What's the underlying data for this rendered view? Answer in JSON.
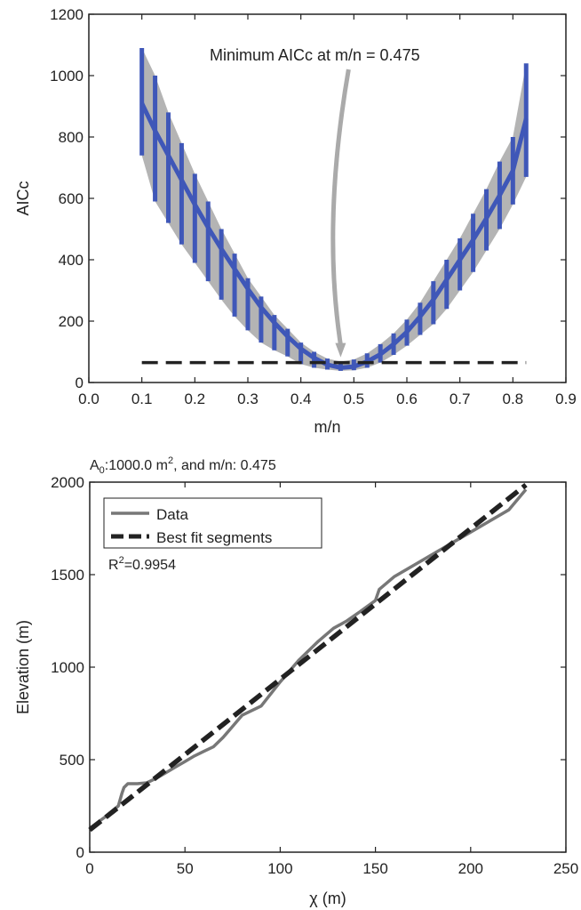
{
  "chart_data": [
    {
      "type": "line",
      "xlabel": "m/n",
      "ylabel": "AICc",
      "xlim": [
        0,
        0.9
      ],
      "ylim": [
        0,
        1200
      ],
      "xticks": [
        "0.0",
        "0.1",
        "0.2",
        "0.3",
        "0.4",
        "0.5",
        "0.6",
        "0.7",
        "0.8",
        "0.9"
      ],
      "yticks": [
        "0",
        "200",
        "400",
        "600",
        "800",
        "1000",
        "1200"
      ],
      "annotation": "Minimum AICc at m/n = 0.475",
      "min_mn": 0.475,
      "reference_line_y": 65,
      "series_color": "#3f57b8",
      "band_color": "#b4b4b4",
      "x": [
        0.1,
        0.125,
        0.15,
        0.175,
        0.2,
        0.225,
        0.25,
        0.275,
        0.3,
        0.325,
        0.35,
        0.375,
        0.4,
        0.425,
        0.45,
        0.475,
        0.5,
        0.525,
        0.55,
        0.575,
        0.6,
        0.625,
        0.65,
        0.675,
        0.7,
        0.725,
        0.75,
        0.775,
        0.8,
        0.825
      ],
      "mean": [
        910,
        820,
        740,
        660,
        580,
        505,
        435,
        370,
        305,
        245,
        195,
        150,
        110,
        80,
        58,
        48,
        52,
        68,
        92,
        125,
        165,
        215,
        270,
        335,
        400,
        465,
        535,
        610,
        690,
        860
      ],
      "lower": [
        740,
        590,
        520,
        450,
        390,
        330,
        270,
        215,
        170,
        130,
        105,
        85,
        60,
        48,
        42,
        38,
        40,
        48,
        65,
        90,
        120,
        155,
        190,
        240,
        300,
        360,
        430,
        500,
        580,
        670
      ],
      "upper": [
        1090,
        1000,
        880,
        780,
        680,
        590,
        500,
        420,
        340,
        280,
        220,
        175,
        130,
        100,
        78,
        68,
        75,
        95,
        125,
        160,
        205,
        260,
        330,
        400,
        470,
        550,
        630,
        720,
        800,
        1040
      ]
    },
    {
      "type": "line",
      "title_main": "A",
      "title_sub": "0",
      "title_mid": ":1000.0 m",
      "title_sup": "2",
      "title_end": ", and m/n: 0.475",
      "xlabel": "χ (m)",
      "ylabel": "Elevation (m)",
      "xlim": [
        0,
        250
      ],
      "ylim": [
        0,
        2000
      ],
      "xticks": [
        "0",
        "50",
        "100",
        "150",
        "200",
        "250"
      ],
      "yticks": [
        "0",
        "500",
        "1000",
        "1500",
        "2000"
      ],
      "r2_prefix": "R",
      "r2_sup": "2",
      "r2_value": "=0.9954",
      "series": [
        {
          "name": "Data",
          "color": "#777777",
          "x": [
            0,
            8,
            15,
            17,
            18,
            20,
            22,
            25,
            30,
            35,
            40,
            45,
            50,
            55,
            60,
            65,
            70,
            75,
            80,
            90,
            100,
            110,
            120,
            128,
            135,
            142,
            150,
            152,
            160,
            170,
            180,
            190,
            200,
            210,
            220,
            229
          ],
          "y": [
            130,
            190,
            250,
            320,
            350,
            370,
            370,
            370,
            375,
            400,
            430,
            460,
            490,
            520,
            545,
            570,
            620,
            680,
            740,
            790,
            920,
            1040,
            1140,
            1210,
            1250,
            1300,
            1360,
            1420,
            1490,
            1550,
            1610,
            1670,
            1730,
            1790,
            1850,
            1960
          ]
        },
        {
          "name": "Best fit segments",
          "color": "#222222",
          "x": [
            0,
            229
          ],
          "y": [
            120,
            1985
          ]
        }
      ]
    }
  ]
}
